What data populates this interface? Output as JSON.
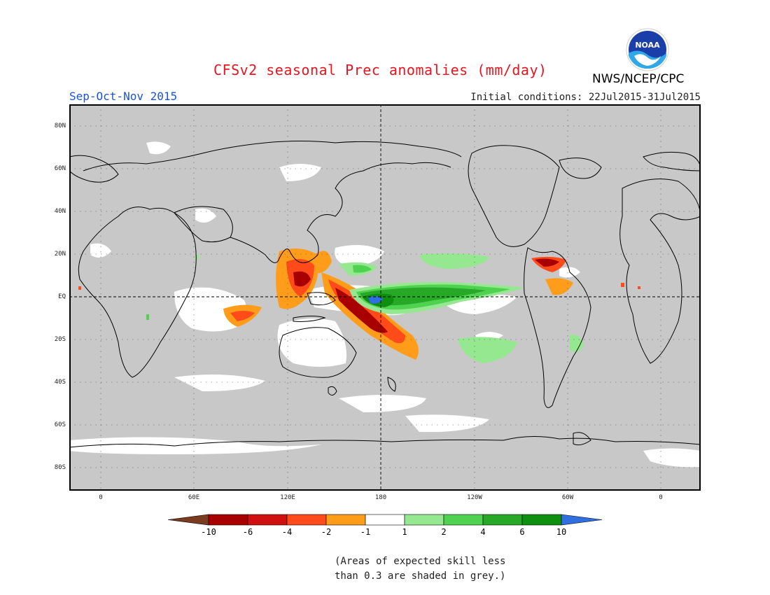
{
  "header": {
    "title": "CFSv2 seasonal Prec anomalies (mm/day)",
    "season": "Sep-Oct-Nov 2015",
    "initial_conditions": "Initial conditions: 22Jul2015-31Jul2015",
    "agency": "NWS/NCEP/CPC",
    "logo_text": "NOAA"
  },
  "map": {
    "lat_labels": [
      "80N",
      "60N",
      "40N",
      "20N",
      "EQ",
      "20S",
      "40S",
      "60S",
      "80S"
    ],
    "lon_labels": [
      "0",
      "60E",
      "120E",
      "180",
      "120W",
      "60W",
      "0"
    ]
  },
  "legend": {
    "ticks": [
      "-10",
      "-6",
      "-4",
      "-2",
      "-1",
      "1",
      "2",
      "4",
      "6",
      "10"
    ],
    "colors": [
      "#7a3b1e",
      "#a80000",
      "#d01010",
      "#ff4a1a",
      "#ff9c1a",
      "#ffffff",
      "#96e890",
      "#4fd24f",
      "#27a827",
      "#0f8f0f",
      "#2f6fe0"
    ]
  },
  "footnote": {
    "line1": "(Areas of expected skill less",
    "line2": "than 0.3 are shaded in grey.)"
  }
}
